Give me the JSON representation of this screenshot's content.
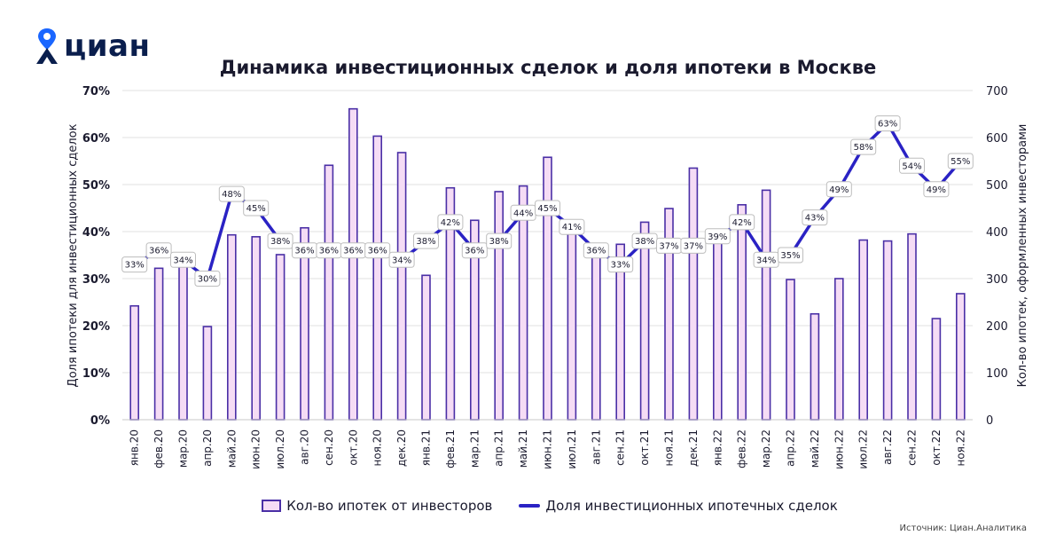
{
  "brand": {
    "name": "циан",
    "logo_color": "#0a1e4d",
    "pin_color": "#1a66ff"
  },
  "source": "Источник: Циан.Аналитика",
  "colors": {
    "bar_fill": "#f5dcf5",
    "bar_stroke": "#4a2fa6",
    "line": "#2a22c4",
    "grid": "#e2e2e2"
  },
  "chart_data": {
    "type": "bar",
    "title": "Динамика инвестиционных сделок и доля ипотеки в Москве",
    "ylabel": "Доля ипотеки для инвестиционных сделок",
    "ylabel_right": "Кол-во ипотек, оформленных инвесторами",
    "ylim": [
      0,
      70
    ],
    "ylim_right": [
      0,
      700
    ],
    "yticks": [
      "0%",
      "10%",
      "20%",
      "30%",
      "40%",
      "50%",
      "60%",
      "70%"
    ],
    "yticks_right": [
      "0",
      "100",
      "200",
      "300",
      "400",
      "500",
      "600",
      "700"
    ],
    "grid": true,
    "legend_position": "bottom",
    "categories": [
      "янв.20",
      "фев.20",
      "мар.20",
      "апр.20",
      "май.20",
      "июн.20",
      "июл.20",
      "авг.20",
      "сен.20",
      "окт.20",
      "ноя.20",
      "дек.20",
      "янв.21",
      "фев.21",
      "мар.21",
      "апр.21",
      "май.21",
      "июн.21",
      "июл.21",
      "авг.21",
      "сен.21",
      "окт.21",
      "ноя.21",
      "дек.21",
      "янв.22",
      "фев.22",
      "мар.22",
      "апр.22",
      "май.22",
      "июн.22",
      "июл.22",
      "авг.22",
      "сен.22",
      "окт.22",
      "ноя.22"
    ],
    "series": [
      {
        "name": "Кол-во ипотек от инвесторов",
        "type": "bar",
        "axis": "right",
        "values": [
          242,
          322,
          327,
          198,
          393,
          389,
          351,
          408,
          541,
          661,
          603,
          568,
          307,
          493,
          424,
          485,
          497,
          558,
          404,
          354,
          373,
          420,
          449,
          535,
          393,
          457,
          488,
          298,
          225,
          300,
          382,
          380,
          395,
          215,
          268
        ]
      },
      {
        "name": "Доля инвестиционных ипотечных сделок",
        "type": "line",
        "axis": "left",
        "values": [
          33,
          36,
          34,
          30,
          48,
          45,
          38,
          36,
          36,
          36,
          36,
          34,
          38,
          42,
          36,
          38,
          44,
          45,
          41,
          36,
          33,
          38,
          37,
          37,
          39,
          42,
          34,
          35,
          43,
          49,
          58,
          63,
          54,
          49,
          55
        ],
        "labels": [
          "33%",
          "36%",
          "34%",
          "30%",
          "48%",
          "45%",
          "38%",
          "36%",
          "36%",
          "36%",
          "36%",
          "34%",
          "38%",
          "42%",
          "36%",
          "38%",
          "44%",
          "45%",
          "41%",
          "36%",
          "33%",
          "38%",
          "37%",
          "37%",
          "39%",
          "42%",
          "34%",
          "35%",
          "43%",
          "49%",
          "58%",
          "63%",
          "54%",
          "49%",
          "55%"
        ]
      }
    ]
  }
}
